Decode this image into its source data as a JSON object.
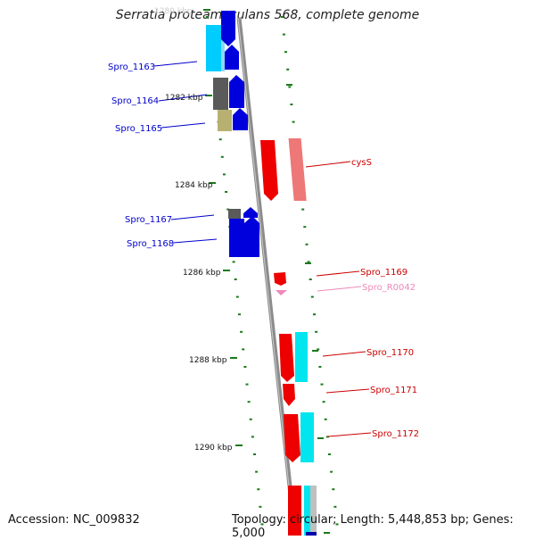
{
  "title": "Serratia proteamaculans 568, complete genome",
  "footer": {
    "accession": "Accession: NC_009832",
    "summary": "Topology: circular; Length: 5,448,853 bp; Genes: 5,000"
  },
  "colors": {
    "backbone": "#8c8c8c",
    "tick": "#1a7a1a",
    "forward_label": "#0000cc",
    "reverse_label": "#cc0000",
    "rna_label": "#ee88bb"
  },
  "axis": {
    "unit": "kbp",
    "ticks": [
      {
        "kbp": 1280,
        "label": "1280 kbp"
      },
      {
        "kbp": 1282,
        "label": "1282 kbp"
      },
      {
        "kbp": 1284,
        "label": "1284 kbp"
      },
      {
        "kbp": 1286,
        "label": "1286 kbp"
      },
      {
        "kbp": 1288,
        "label": "1288 kbp"
      },
      {
        "kbp": 1290,
        "label": "1290 kbp"
      }
    ]
  },
  "genes_left": [
    {
      "label": "Spro_1163",
      "color": "#0000cc"
    },
    {
      "label": "Spro_1164",
      "color": "#0000cc"
    },
    {
      "label": "Spro_1165",
      "color": "#0000cc"
    },
    {
      "label": "Spro_1167",
      "color": "#0000cc"
    },
    {
      "label": "Spro_1168",
      "color": "#0000cc"
    }
  ],
  "genes_right": [
    {
      "label": "cysS",
      "color": "#cc0000"
    },
    {
      "label": "Spro_1169",
      "color": "#cc0000"
    },
    {
      "label": "Spro_R0042",
      "color": "#ee88bb"
    },
    {
      "label": "Spro_1170",
      "color": "#cc0000"
    },
    {
      "label": "Spro_1171",
      "color": "#cc0000"
    },
    {
      "label": "Spro_1172",
      "color": "#cc0000"
    }
  ]
}
